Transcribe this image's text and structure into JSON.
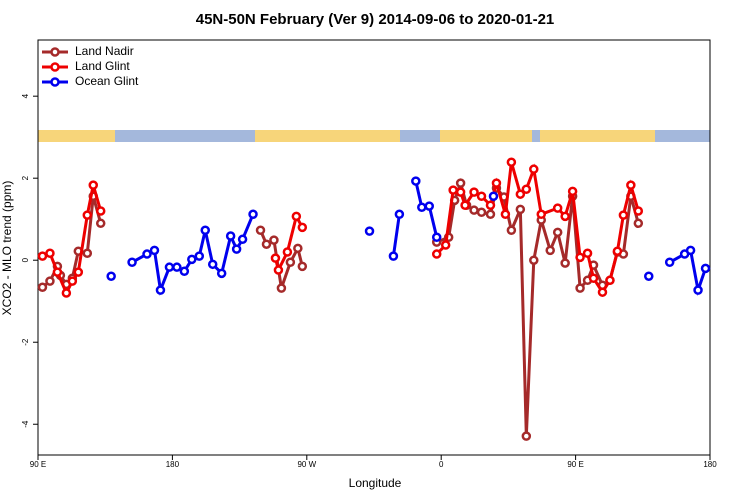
{
  "chart_data": {
    "type": "line",
    "title": "45N-50N February (Ver 9)   2014-09-06 to 2020-01-21",
    "x_label": "Longitude",
    "y_label": "XCO2 - MLO trend (ppm)",
    "xlim": [
      90,
      540
    ],
    "xticks": [
      {
        "value": 90,
        "label": "90 E"
      },
      {
        "value": 180,
        "label": "180"
      },
      {
        "value": 270,
        "label": "90 W"
      },
      {
        "value": 360,
        "label": "0"
      },
      {
        "value": 450,
        "label": "90 E"
      },
      {
        "value": 540,
        "label": "180"
      }
    ],
    "ylim": [
      -4.75,
      5.37
    ],
    "yticks": [
      -4,
      -2,
      0,
      2,
      4
    ],
    "legend": "top-left",
    "series": [
      {
        "name": "Land Nadir",
        "color": "#a52a2a",
        "x": [
          93,
          98,
          103,
          105,
          109,
          113,
          117,
          123,
          127,
          132,
          null,
          239,
          243,
          248,
          253,
          259,
          264,
          267,
          null,
          357,
          365,
          369,
          373,
          377,
          382,
          387,
          393,
          397,
          402,
          407,
          413,
          417,
          422,
          427,
          433,
          438,
          443,
          448,
          453,
          458,
          462,
          468,
          473,
          478,
          482,
          487,
          492
        ],
        "values": [
          -0.66,
          -0.51,
          -0.15,
          -0.37,
          -0.59,
          -0.44,
          0.22,
          0.17,
          1.56,
          0.9,
          null,
          0.73,
          0.39,
          0.49,
          -0.68,
          -0.05,
          0.29,
          -0.15,
          null,
          0.44,
          0.56,
          1.46,
          1.88,
          1.34,
          1.22,
          1.17,
          1.12,
          1.76,
          1.54,
          0.73,
          1.24,
          -4.29,
          0,
          0.98,
          0.24,
          0.68,
          -0.07,
          1.56,
          -0.68,
          -0.49,
          -0.12,
          -0.61,
          -0.49,
          0.2,
          0.15,
          1.56,
          0.9
        ]
      },
      {
        "name": "Land Glint",
        "color": "#ee0000",
        "x": [
          93,
          98,
          103,
          109,
          113,
          117,
          123,
          127,
          132,
          null,
          249,
          251,
          257,
          263,
          267,
          null,
          357,
          363,
          368,
          373,
          376,
          382,
          387,
          393,
          397,
          403,
          407,
          413,
          417,
          422,
          427,
          438,
          443,
          448,
          453,
          458,
          462,
          468,
          473,
          478,
          482,
          487,
          492
        ],
        "values": [
          0.1,
          0.17,
          -0.29,
          -0.8,
          -0.51,
          -0.29,
          1.1,
          1.83,
          1.2,
          null,
          0.05,
          -0.24,
          0.2,
          1.07,
          0.8,
          null,
          0.15,
          0.37,
          1.71,
          1.66,
          1.34,
          1.66,
          1.56,
          1.34,
          1.88,
          1.12,
          2.39,
          1.61,
          1.73,
          2.22,
          1.12,
          1.27,
          1.07,
          1.68,
          0.07,
          0.17,
          -0.44,
          -0.78,
          -0.49,
          0.22,
          1.1,
          1.83,
          1.2
        ]
      },
      {
        "name": "Ocean Glint",
        "color": "#0000ee",
        "x": [
          139,
          null,
          153,
          163,
          168,
          172,
          178,
          183,
          188,
          193,
          198,
          202,
          207,
          213,
          219,
          223,
          227,
          234,
          null,
          312,
          null,
          328,
          332,
          null,
          343,
          347,
          352,
          357,
          null,
          395,
          null,
          499,
          null,
          513,
          523,
          527,
          532,
          537
        ],
        "values": [
          -0.39,
          null,
          -0.05,
          0.15,
          0.24,
          -0.73,
          -0.17,
          -0.17,
          -0.27,
          0.02,
          0.1,
          0.73,
          -0.1,
          -0.32,
          0.59,
          0.27,
          0.51,
          1.12,
          null,
          0.71,
          null,
          0.1,
          1.12,
          null,
          1.93,
          1.29,
          1.32,
          0.56,
          null,
          1.56,
          null,
          -0.39,
          null,
          -0.05,
          0.15,
          0.24,
          -0.73,
          -0.2
        ]
      }
    ]
  }
}
